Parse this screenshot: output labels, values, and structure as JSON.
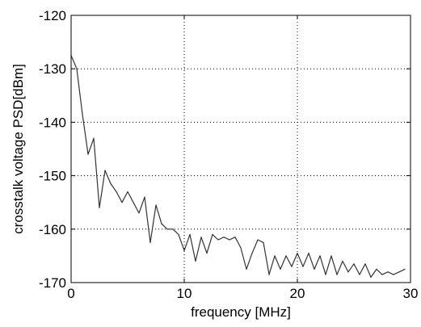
{
  "chart_data": {
    "type": "line",
    "title": "",
    "xlabel": "frequency [MHz]",
    "ylabel": "crosstalk voltage PSD[dBm]",
    "xlim": [
      0,
      30
    ],
    "ylim": [
      -170,
      -120
    ],
    "xticks": [
      0,
      10,
      20,
      30
    ],
    "yticks": [
      -170,
      -160,
      -150,
      -140,
      -130,
      -120
    ],
    "grid": true,
    "legend": "none",
    "line_color": "#333333",
    "series": [
      {
        "x": [
          0,
          0.5,
          1.0,
          1.5,
          2.0,
          2.5,
          3.0,
          3.5,
          4.0,
          4.5,
          5.0,
          5.5,
          6.0,
          6.5,
          7.0,
          7.5,
          8.0,
          8.5,
          9.0,
          9.5,
          10.0,
          10.5,
          11.0,
          11.5,
          12.0,
          12.5,
          13.0,
          13.5,
          14.0,
          14.5,
          15.0,
          15.5,
          16.0,
          16.5,
          17.0,
          17.5,
          18.0,
          18.5,
          19.0,
          19.5,
          20.0,
          20.5,
          21.0,
          21.5,
          22.0,
          22.5,
          23.0,
          23.5,
          24.0,
          24.5,
          25.0,
          25.5,
          26.0,
          26.5,
          27.0,
          27.5,
          28.0,
          28.5,
          29.0,
          29.5
        ],
        "y": [
          -127.5,
          -130,
          -138.5,
          -146,
          -143,
          -156,
          -149,
          -151.5,
          -153,
          -155,
          -153,
          -155,
          -157,
          -154,
          -162.5,
          -155.5,
          -159,
          -160,
          -160,
          -161,
          -164,
          -161,
          -166,
          -161.5,
          -164.5,
          -161,
          -162,
          -161.5,
          -162,
          -161.5,
          -163.5,
          -167.5,
          -164.5,
          -162,
          -162.5,
          -168.5,
          -165,
          -167.5,
          -165,
          -167,
          -164.5,
          -167,
          -164.5,
          -167.5,
          -165,
          -168.5,
          -165,
          -168.5,
          -166,
          -168,
          -166.5,
          -168.5,
          -166.5,
          -169,
          -167.5,
          -168.5,
          -168,
          -168.5,
          -168,
          -167.5
        ]
      }
    ]
  }
}
